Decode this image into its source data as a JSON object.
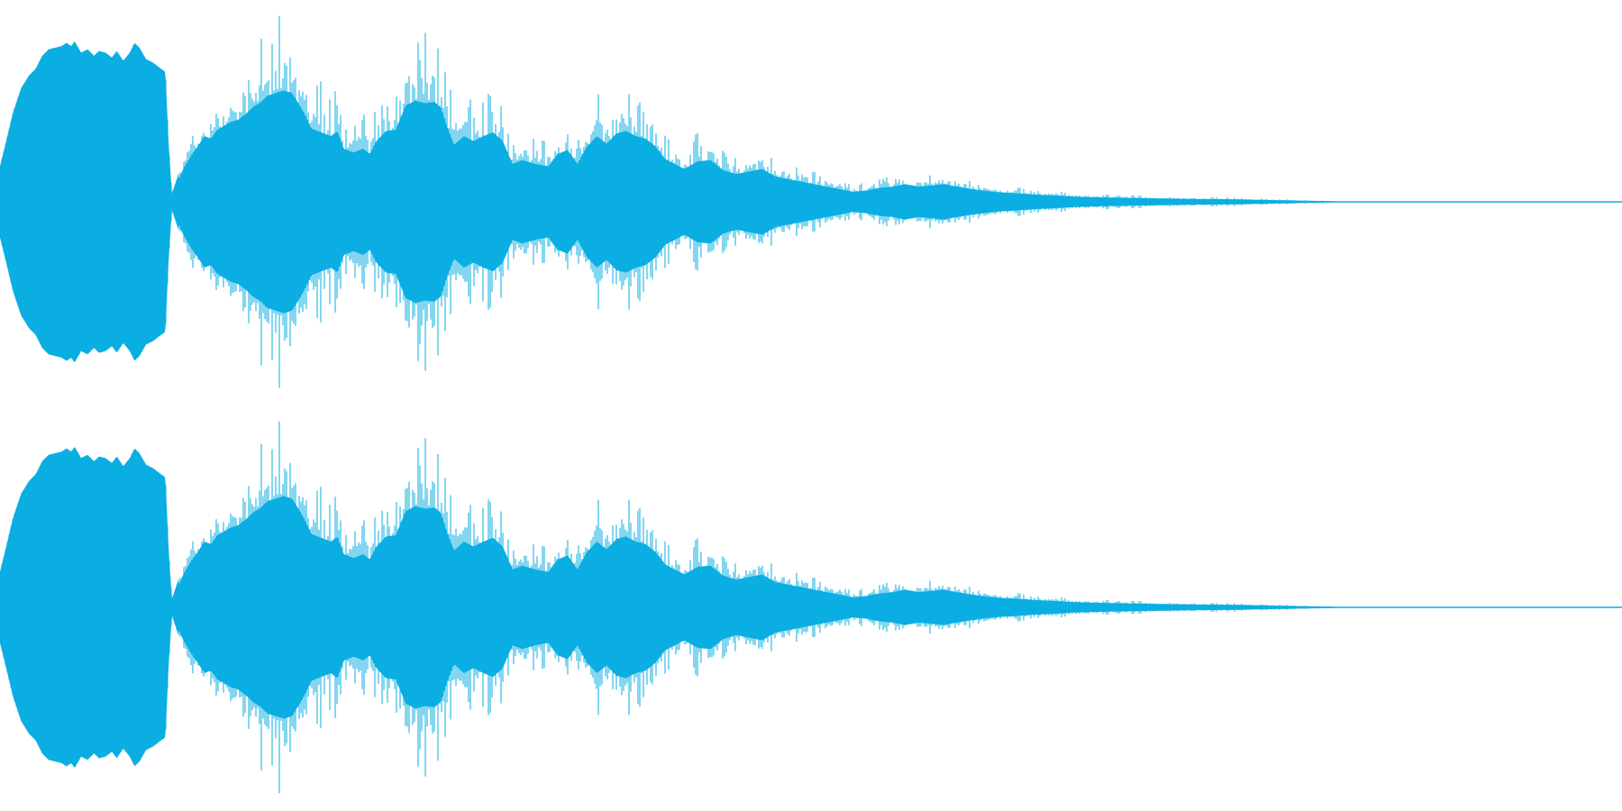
{
  "waveform": {
    "channels": [
      "channel-1",
      "channel-2"
    ],
    "color": "#0aaee2",
    "background": "#ffffff",
    "envelope": [
      [
        0.0,
        0.22
      ],
      [
        0.003,
        0.34
      ],
      [
        0.008,
        0.55
      ],
      [
        0.013,
        0.7
      ],
      [
        0.018,
        0.78
      ],
      [
        0.022,
        0.82
      ],
      [
        0.026,
        0.9
      ],
      [
        0.03,
        0.94
      ],
      [
        0.034,
        0.95
      ],
      [
        0.038,
        0.96
      ],
      [
        0.041,
        0.98
      ],
      [
        0.044,
        0.96
      ],
      [
        0.046,
        0.99
      ],
      [
        0.05,
        0.92
      ],
      [
        0.054,
        0.94
      ],
      [
        0.058,
        0.9
      ],
      [
        0.061,
        0.93
      ],
      [
        0.065,
        0.92
      ],
      [
        0.069,
        0.89
      ],
      [
        0.072,
        0.93
      ],
      [
        0.076,
        0.87
      ],
      [
        0.08,
        0.92
      ],
      [
        0.083,
        0.98
      ],
      [
        0.086,
        0.95
      ],
      [
        0.09,
        0.88
      ],
      [
        0.094,
        0.86
      ],
      [
        0.098,
        0.83
      ],
      [
        0.102,
        0.8
      ],
      [
        0.104,
        0.35
      ],
      [
        0.106,
        0.05
      ],
      [
        0.109,
        0.14
      ],
      [
        0.113,
        0.26
      ],
      [
        0.118,
        0.37
      ],
      [
        0.122,
        0.44
      ],
      [
        0.126,
        0.52
      ],
      [
        0.13,
        0.5
      ],
      [
        0.134,
        0.57
      ],
      [
        0.138,
        0.6
      ],
      [
        0.142,
        0.63
      ],
      [
        0.147,
        0.65
      ],
      [
        0.152,
        0.7
      ],
      [
        0.156,
        0.75
      ],
      [
        0.16,
        0.78
      ],
      [
        0.165,
        0.84
      ],
      [
        0.17,
        0.86
      ],
      [
        0.175,
        0.88
      ],
      [
        0.18,
        0.86
      ],
      [
        0.184,
        0.78
      ],
      [
        0.188,
        0.69
      ],
      [
        0.192,
        0.58
      ],
      [
        0.198,
        0.55
      ],
      [
        0.204,
        0.52
      ],
      [
        0.208,
        0.56
      ],
      [
        0.212,
        0.42
      ],
      [
        0.218,
        0.39
      ],
      [
        0.224,
        0.42
      ],
      [
        0.228,
        0.38
      ],
      [
        0.232,
        0.48
      ],
      [
        0.238,
        0.56
      ],
      [
        0.244,
        0.57
      ],
      [
        0.25,
        0.76
      ],
      [
        0.256,
        0.8
      ],
      [
        0.262,
        0.78
      ],
      [
        0.268,
        0.79
      ],
      [
        0.272,
        0.74
      ],
      [
        0.276,
        0.58
      ],
      [
        0.28,
        0.45
      ],
      [
        0.286,
        0.52
      ],
      [
        0.292,
        0.48
      ],
      [
        0.298,
        0.52
      ],
      [
        0.304,
        0.55
      ],
      [
        0.31,
        0.48
      ],
      [
        0.316,
        0.3
      ],
      [
        0.322,
        0.33
      ],
      [
        0.33,
        0.3
      ],
      [
        0.338,
        0.28
      ],
      [
        0.344,
        0.38
      ],
      [
        0.35,
        0.41
      ],
      [
        0.356,
        0.3
      ],
      [
        0.362,
        0.44
      ],
      [
        0.368,
        0.52
      ],
      [
        0.374,
        0.46
      ],
      [
        0.38,
        0.54
      ],
      [
        0.386,
        0.56
      ],
      [
        0.392,
        0.52
      ],
      [
        0.398,
        0.5
      ],
      [
        0.404,
        0.44
      ],
      [
        0.41,
        0.34
      ],
      [
        0.416,
        0.3
      ],
      [
        0.422,
        0.26
      ],
      [
        0.43,
        0.32
      ],
      [
        0.438,
        0.33
      ],
      [
        0.446,
        0.25
      ],
      [
        0.454,
        0.22
      ],
      [
        0.462,
        0.24
      ],
      [
        0.47,
        0.26
      ],
      [
        0.478,
        0.2
      ],
      [
        0.486,
        0.18
      ],
      [
        0.494,
        0.16
      ],
      [
        0.502,
        0.14
      ],
      [
        0.51,
        0.12
      ],
      [
        0.518,
        0.1
      ],
      [
        0.526,
        0.08
      ],
      [
        0.534,
        0.09
      ],
      [
        0.542,
        0.11
      ],
      [
        0.55,
        0.12
      ],
      [
        0.558,
        0.14
      ],
      [
        0.566,
        0.12
      ],
      [
        0.574,
        0.13
      ],
      [
        0.582,
        0.14
      ],
      [
        0.59,
        0.12
      ],
      [
        0.6,
        0.1
      ],
      [
        0.612,
        0.08
      ],
      [
        0.624,
        0.07
      ],
      [
        0.636,
        0.06
      ],
      [
        0.65,
        0.05
      ],
      [
        0.665,
        0.04
      ],
      [
        0.68,
        0.035
      ],
      [
        0.7,
        0.03
      ],
      [
        0.72,
        0.025
      ],
      [
        0.74,
        0.022
      ],
      [
        0.76,
        0.02
      ],
      [
        0.78,
        0.015
      ],
      [
        0.8,
        0.01
      ],
      [
        0.815,
        0.006
      ],
      [
        0.825,
        0.003
      ],
      [
        0.83,
        0.0
      ],
      [
        1.0,
        0.0
      ]
    ]
  }
}
